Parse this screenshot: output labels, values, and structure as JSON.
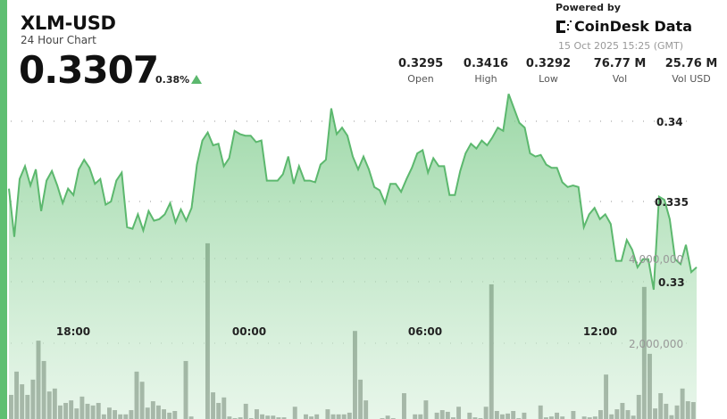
{
  "header": {
    "title": "XLM-USD",
    "subtitle": "24 Hour Chart",
    "price": "0.3307",
    "change_pct": "0.38%",
    "change_direction": "up",
    "powered_by": "Powered by",
    "brand": "CoinDesk Data",
    "timestamp": "15 Oct 2025 15:25 (GMT)"
  },
  "stats": [
    {
      "value": "0.3295",
      "label": "Open"
    },
    {
      "value": "0.3416",
      "label": "High"
    },
    {
      "value": "0.3292",
      "label": "Low"
    },
    {
      "value": "76.77 M",
      "label": "Vol"
    },
    {
      "value": "25.76 M",
      "label": "Vol USD"
    }
  ],
  "colors": {
    "accent": "#5fbf72",
    "line": "#5cb86e",
    "volume_bar": "#5f635e",
    "up": "#5cb86e"
  },
  "chart_data": {
    "type": "area",
    "x_range": [
      "14 Oct 2025 15:25",
      "15 Oct 2025 15:25"
    ],
    "x_ticks": [
      "18:00",
      "00:00",
      "06:00",
      "12:00"
    ],
    "y_price_ticks": [
      "0.34",
      "0.335",
      "0.33"
    ],
    "y_price_tick_values": [
      0.34,
      0.335,
      0.33
    ],
    "y_volume_ticks": [
      "4,000,000",
      "2,000,000"
    ],
    "y_volume_tick_values": [
      4000000,
      2000000
    ],
    "grid": true,
    "price": [
      0.3358,
      0.3328,
      0.3364,
      0.3372,
      0.336,
      0.337,
      0.3344,
      0.3363,
      0.3369,
      0.336,
      0.3349,
      0.3358,
      0.3354,
      0.337,
      0.3376,
      0.3371,
      0.3361,
      0.3364,
      0.3348,
      0.335,
      0.3363,
      0.3368,
      0.3334,
      0.3333,
      0.3342,
      0.3332,
      0.3344,
      0.3338,
      0.3339,
      0.3342,
      0.3349,
      0.3337,
      0.3345,
      0.3338,
      0.3346,
      0.3373,
      0.3388,
      0.3393,
      0.3385,
      0.3386,
      0.3372,
      0.3377,
      0.3394,
      0.3392,
      0.3391,
      0.3391,
      0.3387,
      0.3388,
      0.3363,
      0.3363,
      0.3363,
      0.3367,
      0.3378,
      0.3361,
      0.3372,
      0.3363,
      0.3363,
      0.3362,
      0.3373,
      0.3376,
      0.3408,
      0.3392,
      0.3396,
      0.3391,
      0.3378,
      0.337,
      0.3378,
      0.337,
      0.3359,
      0.3357,
      0.3349,
      0.3361,
      0.3361,
      0.3356,
      0.3364,
      0.3371,
      0.338,
      0.3382,
      0.3368,
      0.3377,
      0.3372,
      0.3372,
      0.3354,
      0.3354,
      0.3369,
      0.338,
      0.3386,
      0.3383,
      0.3388,
      0.3385,
      0.339,
      0.3396,
      0.3394,
      0.3417,
      0.3408,
      0.3399,
      0.3396,
      0.338,
      0.3378,
      0.3379,
      0.3373,
      0.3371,
      0.3371,
      0.3362,
      0.3359,
      0.336,
      0.3359,
      0.3334,
      0.3342,
      0.3346,
      0.3339,
      0.3342,
      0.3336,
      0.3313,
      0.3313,
      0.3326,
      0.332,
      0.3309,
      0.3314,
      0.3314,
      0.3295,
      0.3353,
      0.3351,
      0.3339,
      0.3314,
      0.3311,
      0.3323,
      0.3306,
      0.3309
    ],
    "volume": [
      780000,
      1330000,
      1030000,
      780000,
      1140000,
      2060000,
      1580000,
      860000,
      930000,
      530000,
      590000,
      650000,
      460000,
      740000,
      570000,
      530000,
      590000,
      320000,
      480000,
      420000,
      320000,
      320000,
      420000,
      1330000,
      1090000,
      480000,
      630000,
      530000,
      440000,
      360000,
      400000,
      50000,
      1580000,
      270000,
      50000,
      50000,
      4360000,
      840000,
      590000,
      720000,
      270000,
      230000,
      250000,
      570000,
      230000,
      440000,
      320000,
      290000,
      290000,
      250000,
      250000,
      50000,
      500000,
      50000,
      320000,
      270000,
      320000,
      210000,
      440000,
      320000,
      320000,
      320000,
      360000,
      2290000,
      1140000,
      650000,
      50000,
      50000,
      230000,
      290000,
      230000,
      50000,
      820000,
      50000,
      320000,
      320000,
      650000,
      50000,
      360000,
      420000,
      380000,
      250000,
      500000,
      50000,
      360000,
      250000,
      230000,
      500000,
      3390000,
      400000,
      320000,
      340000,
      400000,
      230000,
      360000,
      50000,
      50000,
      530000,
      250000,
      270000,
      360000,
      270000,
      50000,
      400000,
      50000,
      270000,
      250000,
      270000,
      420000,
      1260000,
      320000,
      440000,
      590000,
      420000,
      290000,
      780000,
      3330000,
      1750000,
      460000,
      820000,
      570000,
      300000,
      530000,
      930000,
      630000,
      610000
    ]
  }
}
